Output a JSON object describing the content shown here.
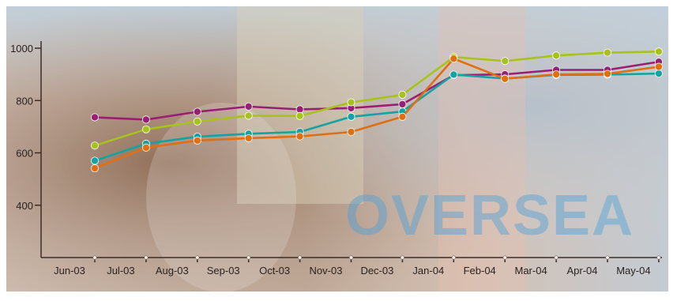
{
  "chart_data": {
    "type": "line",
    "title": "",
    "xlabel": "",
    "ylabel": "",
    "categories": [
      "Jun-03",
      "Jul-03",
      "Aug-03",
      "Sep-03",
      "Oct-03",
      "Nov-03",
      "Dec-03",
      "Jan-04",
      "Feb-04",
      "Mar-04",
      "Apr-04",
      "May-04"
    ],
    "yticks": [
      400,
      600,
      800,
      1000
    ],
    "ylim": [
      200,
      1000
    ],
    "grid": false,
    "watermark_text": "OVERSEA",
    "series": [
      {
        "color": "#9a1e74",
        "values": [
          736,
          727,
          757,
          777,
          766,
          771,
          786,
          897,
          900,
          917,
          917,
          948
        ]
      },
      {
        "color": "#a8c21c",
        "values": [
          628,
          690,
          720,
          742,
          741,
          793,
          822,
          966,
          951,
          972,
          983,
          987
        ]
      },
      {
        "color": "#16a2a2",
        "values": [
          570,
          635,
          662,
          673,
          680,
          738,
          758,
          899,
          884,
          898,
          899,
          903
        ]
      },
      {
        "color": "#e06f12",
        "values": [
          541,
          620,
          647,
          656,
          663,
          680,
          738,
          960,
          883,
          900,
          902,
          929
        ]
      }
    ]
  }
}
